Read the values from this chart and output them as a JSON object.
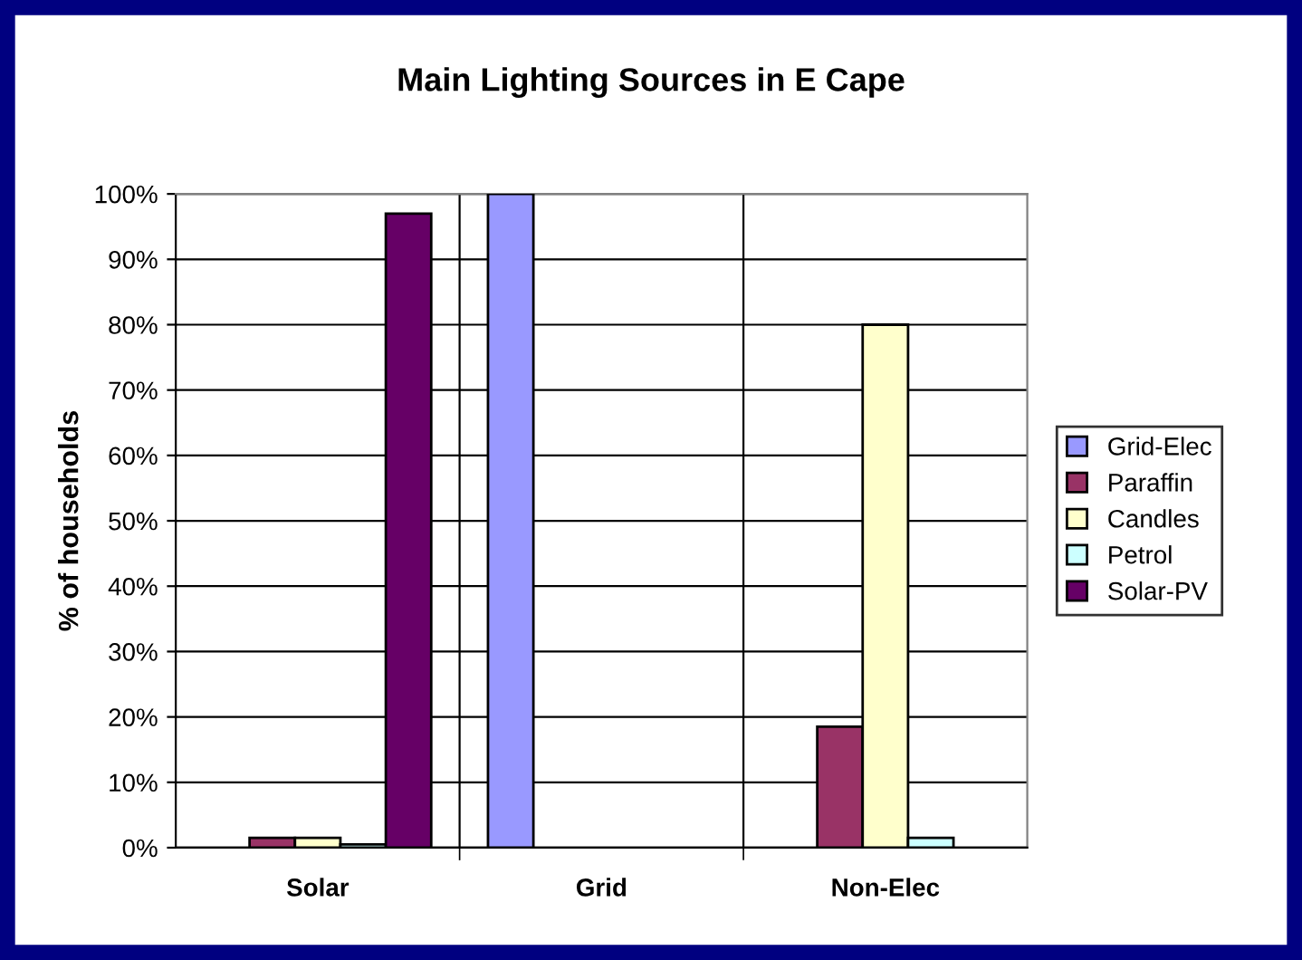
{
  "chart_data": {
    "type": "bar",
    "title": "Main Lighting Sources in E Cape",
    "ylabel": "% of households",
    "categories": [
      "Solar",
      "Grid",
      "Non-Elec"
    ],
    "series": [
      {
        "name": "Grid-Elec",
        "color": "#9999ff",
        "values": [
          0,
          100,
          0
        ]
      },
      {
        "name": "Paraffin",
        "color": "#993366",
        "values": [
          1.5,
          0,
          18.5
        ]
      },
      {
        "name": "Candles",
        "color": "#ffffcc",
        "values": [
          1.5,
          0,
          80
        ]
      },
      {
        "name": "Petrol",
        "color": "#ccffff",
        "values": [
          0.5,
          0,
          1.5
        ]
      },
      {
        "name": "Solar-PV",
        "color": "#660066",
        "values": [
          97,
          0,
          0
        ]
      }
    ],
    "ylim": [
      0,
      100
    ],
    "yticks": [
      {
        "value": 0,
        "label": "0%"
      },
      {
        "value": 10,
        "label": "10%"
      },
      {
        "value": 20,
        "label": "20%"
      },
      {
        "value": 30,
        "label": "30%"
      },
      {
        "value": 40,
        "label": "40%"
      },
      {
        "value": 50,
        "label": "50%"
      },
      {
        "value": 60,
        "label": "60%"
      },
      {
        "value": 70,
        "label": "70%"
      },
      {
        "value": 80,
        "label": "80%"
      },
      {
        "value": 90,
        "label": "90%"
      },
      {
        "value": 100,
        "label": "100%"
      }
    ],
    "grid": true,
    "legend": "right"
  }
}
